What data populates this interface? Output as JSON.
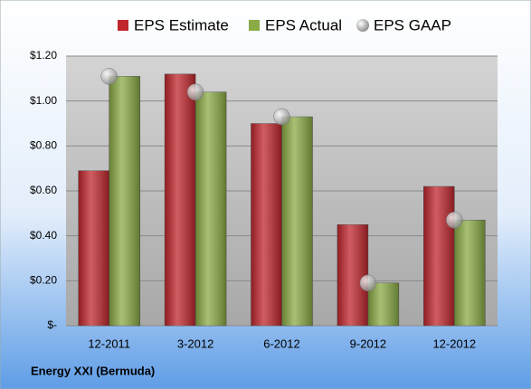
{
  "chart_data": {
    "type": "bar",
    "categories": [
      "12-2011",
      "3-2012",
      "6-2012",
      "9-2012",
      "12-2012"
    ],
    "series": [
      {
        "name": "EPS Estimate",
        "color": "#c0262c",
        "kind": "bar",
        "values": [
          0.69,
          1.12,
          0.9,
          0.45,
          0.62
        ]
      },
      {
        "name": "EPS Actual",
        "color": "#8aab45",
        "kind": "bar",
        "values": [
          1.11,
          1.04,
          0.93,
          0.19,
          0.47
        ]
      },
      {
        "name": "EPS GAAP",
        "color": "#b4b4b4",
        "kind": "dot",
        "values": [
          1.11,
          1.04,
          0.93,
          0.19,
          0.47
        ]
      }
    ],
    "ylim": [
      0,
      1.2
    ],
    "yticks": [
      {
        "value": 0,
        "label": "$-"
      },
      {
        "value": 0.2,
        "label": "$0.20"
      },
      {
        "value": 0.4,
        "label": "$0.40"
      },
      {
        "value": 0.6,
        "label": "$0.60"
      },
      {
        "value": 0.8,
        "label": "$0.80"
      },
      {
        "value": 1.0,
        "label": "$1.00"
      },
      {
        "value": 1.2,
        "label": "$1.20"
      }
    ],
    "grid": true,
    "legend": "top",
    "footer": "Energy XXI (Bermuda)"
  }
}
